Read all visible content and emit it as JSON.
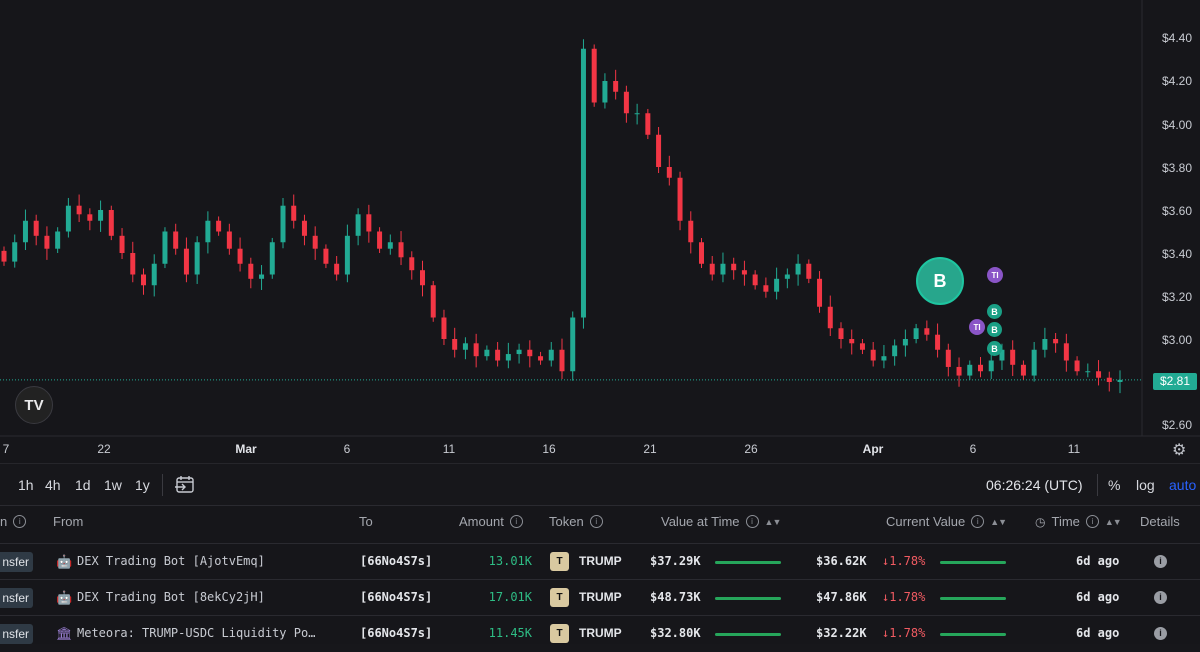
{
  "chart": {
    "price_ticks": [
      "$4.40",
      "$4.20",
      "$4.00",
      "$3.80",
      "$3.60",
      "$3.40",
      "$3.20",
      "$3.00",
      "$2.80",
      "$2.60"
    ],
    "date_ticks": [
      "7",
      "22",
      "Mar",
      "6",
      "11",
      "16",
      "21",
      "26",
      "Apr",
      "6",
      "11"
    ],
    "last_price_label": "$2.81",
    "logo_text": "TV",
    "markers": {
      "big": "B",
      "b": "B",
      "t": "TI"
    },
    "up_color": "#22ab94",
    "down_color": "#f23645"
  },
  "chart_data": {
    "type": "candlestick",
    "ylim": [
      2.6,
      4.4
    ],
    "price_unit": "$",
    "last_price": 2.81,
    "close": [
      3.36,
      3.45,
      3.55,
      3.48,
      3.42,
      3.5,
      3.62,
      3.58,
      3.55,
      3.6,
      3.48,
      3.4,
      3.3,
      3.25,
      3.35,
      3.5,
      3.42,
      3.3,
      3.45,
      3.55,
      3.5,
      3.42,
      3.35,
      3.28,
      3.3,
      3.45,
      3.62,
      3.55,
      3.48,
      3.42,
      3.35,
      3.3,
      3.48,
      3.58,
      3.5,
      3.42,
      3.45,
      3.38,
      3.32,
      3.25,
      3.1,
      3.0,
      2.95,
      2.98,
      2.92,
      2.95,
      2.9,
      2.93,
      2.95,
      2.92,
      2.9,
      2.95,
      2.85,
      3.1,
      4.35,
      4.1,
      4.2,
      4.15,
      4.05,
      4.05,
      3.95,
      3.8,
      3.75,
      3.55,
      3.45,
      3.35,
      3.3,
      3.35,
      3.32,
      3.3,
      3.25,
      3.22,
      3.28,
      3.3,
      3.35,
      3.28,
      3.15,
      3.05,
      3.0,
      2.98,
      2.95,
      2.9,
      2.92,
      2.97,
      3.0,
      3.05,
      3.02,
      2.95,
      2.87,
      2.83,
      2.88,
      2.85,
      2.9,
      2.95,
      2.88,
      2.83,
      2.95,
      3.0,
      2.98,
      2.9,
      2.85,
      2.85,
      2.82,
      2.8,
      2.81
    ]
  },
  "toolbar": {
    "timeframes": [
      "1h",
      "4h",
      "1d",
      "1w",
      "1y"
    ],
    "clock": "06:26:24 (UTC)",
    "percent_label": "%",
    "log_label": "log",
    "auto_label": "auto"
  },
  "table": {
    "headers": {
      "type": "n",
      "from": "From",
      "to": "To",
      "amount": "Amount",
      "token": "Token",
      "value_at_time": "Value at Time",
      "current_value": "Current Value",
      "time": "Time",
      "details": "Details"
    },
    "rows": [
      {
        "type": "nsfer",
        "from_icon": "robot-icon",
        "from": "DEX Trading Bot [AjotvEmq]",
        "to": "[66No4S7s]",
        "amount": "13.01K",
        "token": "TRUMP",
        "value_at_time": "$37.29K",
        "value_fill": 1.0,
        "current_value": "$36.62K",
        "change": "↓1.78%",
        "current_fill": 1.0,
        "time": "6d ago"
      },
      {
        "type": "nsfer",
        "from_icon": "robot-icon",
        "from": "DEX Trading Bot [8ekCy2jH]",
        "to": "[66No4S7s]",
        "amount": "17.01K",
        "token": "TRUMP",
        "value_at_time": "$48.73K",
        "value_fill": 1.0,
        "current_value": "$47.86K",
        "change": "↓1.78%",
        "current_fill": 1.0,
        "time": "6d ago"
      },
      {
        "type": "nsfer",
        "from_icon": "bank-icon",
        "from": "Meteora: TRUMP-USDC Liquidity Po…",
        "to": "[66No4S7s]",
        "amount": "11.45K",
        "token": "TRUMP",
        "value_at_time": "$32.80K",
        "value_fill": 1.0,
        "current_value": "$32.22K",
        "change": "↓1.78%",
        "current_fill": 1.0,
        "time": "6d ago"
      }
    ]
  }
}
